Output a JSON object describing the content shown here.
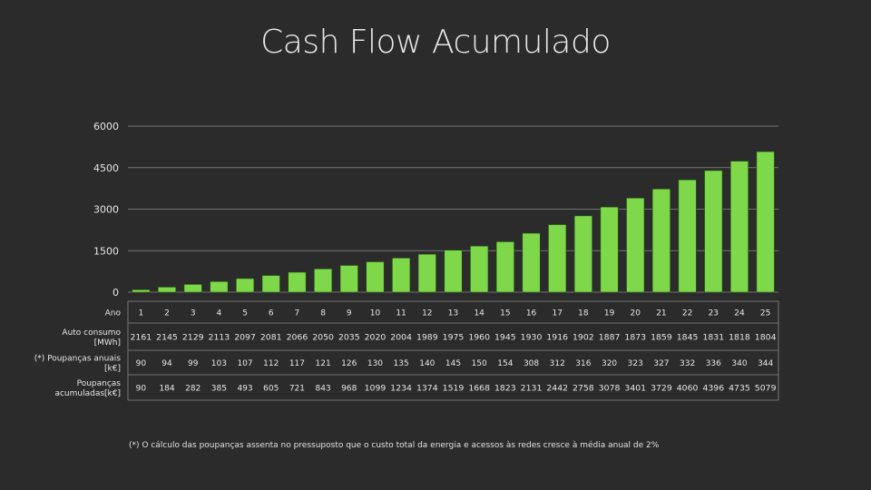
{
  "title": "Cash Flow Acumulado",
  "footnote": "(*)  O cálculo das poupanças assenta no pressuposto que o custo total da energia e acessos às redes cresce à média anual de 2%",
  "colors": {
    "background": "#2b2b2b",
    "bar": "#7fd74a",
    "bar_edge": "#1f4f14",
    "grid": "#8a8a8a",
    "text": "#e6e6e6"
  },
  "chart_data": {
    "type": "bar",
    "title": "Cash Flow Acumulado",
    "ylim": [
      0,
      6000
    ],
    "yticks": [
      "0",
      "1500",
      "3000",
      "4500",
      "6000"
    ],
    "ytick_values": [
      0,
      1500,
      3000,
      4500,
      6000
    ],
    "grid": true,
    "categories": [
      "1",
      "2",
      "3",
      "4",
      "5",
      "6",
      "7",
      "8",
      "9",
      "10",
      "11",
      "12",
      "13",
      "14",
      "15",
      "16",
      "17",
      "18",
      "19",
      "20",
      "21",
      "22",
      "23",
      "24",
      "25"
    ],
    "values": [
      90,
      184,
      282,
      385,
      493,
      605,
      721,
      843,
      968,
      1099,
      1234,
      1374,
      1519,
      1668,
      1823,
      2131,
      2442,
      2758,
      3078,
      3401,
      3729,
      4060,
      4396,
      4735,
      5079
    ],
    "table": {
      "rows": [
        {
          "label": [
            "Ano"
          ],
          "cells": [
            "1",
            "2",
            "3",
            "4",
            "5",
            "6",
            "7",
            "8",
            "9",
            "10",
            "11",
            "12",
            "13",
            "14",
            "15",
            "16",
            "17",
            "18",
            "19",
            "20",
            "21",
            "22",
            "23",
            "24",
            "25"
          ]
        },
        {
          "label": [
            "Auto consumo",
            "[MWh]"
          ],
          "cells": [
            "2161",
            "2145",
            "2129",
            "2113",
            "2097",
            "2081",
            "2066",
            "2050",
            "2035",
            "2020",
            "2004",
            "1989",
            "1975",
            "1960",
            "1945",
            "1930",
            "1916",
            "1902",
            "1887",
            "1873",
            "1859",
            "1845",
            "1831",
            "1818",
            "1804"
          ]
        },
        {
          "label": [
            "(*) Poupanças anuais",
            "[k€]"
          ],
          "cells": [
            "90",
            "94",
            "99",
            "103",
            "107",
            "112",
            "117",
            "121",
            "126",
            "130",
            "135",
            "140",
            "145",
            "150",
            "154",
            "308",
            "312",
            "316",
            "320",
            "323",
            "327",
            "332",
            "336",
            "340",
            "344"
          ]
        },
        {
          "label": [
            "Poupanças",
            "acumuladas[k€]"
          ],
          "cells": [
            "90",
            "184",
            "282",
            "385",
            "493",
            "605",
            "721",
            "843",
            "968",
            "1099",
            "1234",
            "1374",
            "1519",
            "1668",
            "1823",
            "2131",
            "2442",
            "2758",
            "3078",
            "3401",
            "3729",
            "4060",
            "4396",
            "4735",
            "5079"
          ]
        }
      ]
    }
  }
}
